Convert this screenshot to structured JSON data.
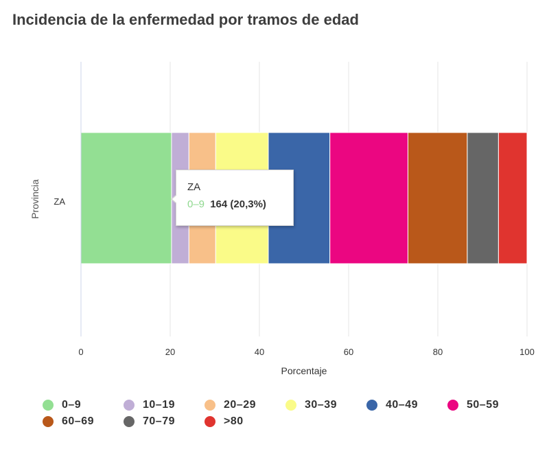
{
  "chart_data": {
    "type": "bar",
    "orientation": "horizontal",
    "stacking": "percent",
    "title": "Incidencia de la enfermedad por tramos de edad",
    "xlabel": "Porcentaje",
    "ylabel": "Provincia",
    "categories": [
      "ZA"
    ],
    "xlim": [
      0,
      100
    ],
    "xticks": [
      "0",
      "20",
      "40",
      "60",
      "80",
      "100"
    ],
    "grid": true,
    "legend_position": "bottom",
    "series": [
      {
        "name": "0–9",
        "values": [
          20.3
        ],
        "color": "#93df93"
      },
      {
        "name": "10–19",
        "values": [
          3.9
        ],
        "color": "#c0aed6"
      },
      {
        "name": "20–29",
        "values": [
          6.0
        ],
        "color": "#f8c089"
      },
      {
        "name": "30–39",
        "values": [
          11.8
        ],
        "color": "#fafb88"
      },
      {
        "name": "40–49",
        "values": [
          13.8
        ],
        "color": "#3a66a8"
      },
      {
        "name": "50–59",
        "values": [
          17.5
        ],
        "color": "#eb0681"
      },
      {
        "name": "60–69",
        "values": [
          13.3
        ],
        "color": "#b9581a"
      },
      {
        "name": "70–79",
        "values": [
          7.0
        ],
        "color": "#666666"
      },
      {
        "name": ">80",
        "values": [
          6.4
        ],
        "color": "#e0342f"
      }
    ],
    "tooltip": {
      "category": "ZA",
      "series": "0–9",
      "value": "164 (20,3%)"
    }
  }
}
